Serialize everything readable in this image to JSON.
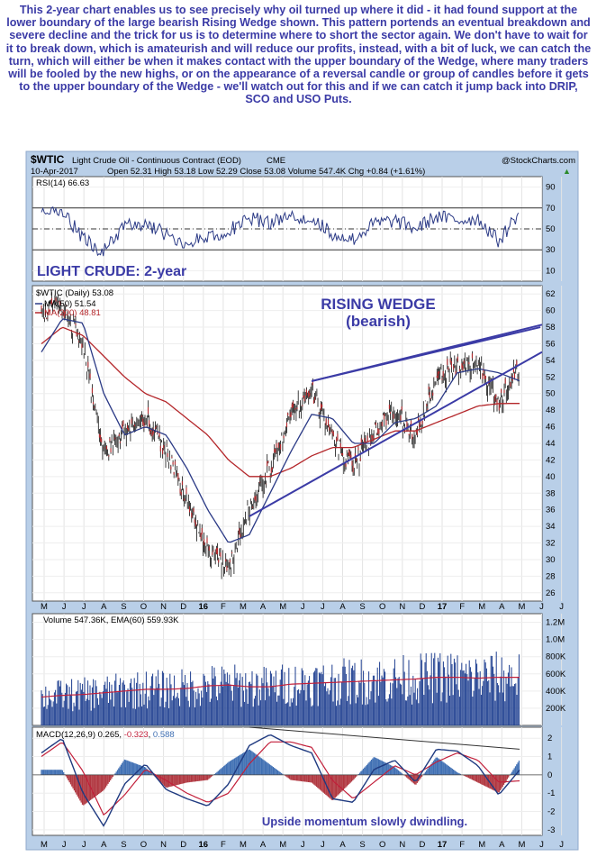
{
  "commentary": "This 2-year chart enables us to see precisely why oil turned up where it did - it had found support at the lower boundary of the large bearish Rising Wedge shown. This pattern portends an eventual breakdown and severe decline and the trick for us is to determine where to short the sector again. We don't have to wait for it to break down, which is amateurish and will reduce our profits, instead, with a bit of luck, we can catch the turn, which will either be when it makes contact with the upper boundary of the Wedge, where many traders will be fooled by the new highs, or on the appearance of a reversal candle or group of candles before it gets to the upper boundary of the Wedge - we'll watch out for this and if we can catch it jump back into DRIP, SCO and USO Puts.",
  "header": {
    "symbol": "$WTIC",
    "name": "Light Crude Oil - Continuous Contract (EOD)",
    "exchange": "CME",
    "credit": "@StockCharts.com",
    "date": "10-Apr-2017",
    "quote": "Open 52.31  High 53.18  Low 52.29  Close 53.08  Volume 547.4K  Chg +0.84 (+1.61%)",
    "quote_arrow": "▲"
  },
  "colors": {
    "frame_bg": "#b9cfe8",
    "panel_bg": "#ffffff",
    "annotation": "#3b3ba6",
    "price": "#111111",
    "ma50": "#2b3a86",
    "ma200": "#b4262a",
    "volume": "#1c3d8f",
    "macd": "#1f3a80",
    "signal": "#c21f3a",
    "hist_pos": "#3f6fb3",
    "hist_neg": "#b0363f",
    "wedge": "#3b3ba6"
  },
  "annotations": {
    "light_crude": "LIGHT CRUDE: 2-year",
    "rising_wedge": "RISING WEDGE",
    "bearish": "(bearish)",
    "momentum": "Upside momentum slowly dwindling."
  },
  "x_axis": {
    "labels": [
      "M",
      "J",
      "J",
      "A",
      "S",
      "O",
      "N",
      "D",
      "16",
      "F",
      "M",
      "A",
      "M",
      "J",
      "J",
      "A",
      "S",
      "O",
      "N",
      "D",
      "17",
      "F",
      "M",
      "A",
      "M",
      "J",
      "J"
    ],
    "bold_labels": [
      "16",
      "17"
    ]
  },
  "rsi_panel": {
    "legend": "RSI(14) 66.63",
    "ticks": [
      90,
      70,
      50,
      30,
      10
    ],
    "bands": [
      70,
      50,
      30
    ],
    "ylim": [
      0,
      100
    ]
  },
  "price_panel": {
    "legend_main": "$WTIC (Daily) 53.08",
    "legend_ma50": "MA(50) 51.54",
    "legend_ma200": "MA(200) 48.81",
    "ticks": [
      62,
      60,
      58,
      56,
      54,
      52,
      50,
      48,
      46,
      44,
      42,
      40,
      38,
      36,
      34,
      32,
      30,
      28,
      26
    ],
    "ylim": [
      25,
      63
    ]
  },
  "volume_panel": {
    "legend": "Volume 547.36K, EMA(60) 559.93K",
    "ticks": [
      "1.2M",
      "1.0M",
      "800K",
      "600K",
      "400K",
      "200K"
    ],
    "tick_values": [
      1200000,
      1000000,
      800000,
      600000,
      400000,
      200000
    ],
    "ylim": [
      0,
      1300000
    ]
  },
  "macd_panel": {
    "legend_prefix": "MACD(12,26,9) 0.265, ",
    "legend_signal": "-0.323",
    "legend_sep": ", ",
    "legend_hist": "0.588",
    "ticks": [
      "2",
      "1",
      "0",
      "-1",
      "-2",
      "-3"
    ],
    "tick_values": [
      2,
      1,
      0,
      -1,
      -2,
      -3
    ],
    "ylim": [
      -3.3,
      2.6
    ]
  },
  "chart_data": {
    "type": "line",
    "title": "Light Crude Oil - Continuous Contract (EOD)",
    "x": [
      "2015-05",
      "2015-06",
      "2015-07",
      "2015-08",
      "2015-09",
      "2015-10",
      "2015-11",
      "2015-12",
      "2016-01",
      "2016-02",
      "2016-03",
      "2016-04",
      "2016-05",
      "2016-06",
      "2016-07",
      "2016-08",
      "2016-09",
      "2016-10",
      "2016-11",
      "2016-12",
      "2017-01",
      "2017-02",
      "2017-03",
      "2017-04"
    ],
    "series": [
      {
        "name": "$WTIC (Daily)",
        "values": [
          59.5,
          60.5,
          56.0,
          42.5,
          45.5,
          47.0,
          43.0,
          37.0,
          31.0,
          28.5,
          36.5,
          41.0,
          47.5,
          50.5,
          44.5,
          41.0,
          45.5,
          48.0,
          45.0,
          52.0,
          53.0,
          53.8,
          49.0,
          53.08
        ]
      },
      {
        "name": "MA(50)",
        "values": [
          55.0,
          59.0,
          58.5,
          50.0,
          45.0,
          46.0,
          45.0,
          41.0,
          36.0,
          32.0,
          33.0,
          38.0,
          43.0,
          47.5,
          47.0,
          44.0,
          44.0,
          46.5,
          47.0,
          48.5,
          52.5,
          53.0,
          52.5,
          51.54
        ]
      },
      {
        "name": "MA(200)",
        "values": [
          56.0,
          58.0,
          57.0,
          54.5,
          52.0,
          50.0,
          49.0,
          47.0,
          45.0,
          42.0,
          40.0,
          40.0,
          41.0,
          42.5,
          43.5,
          43.5,
          44.5,
          45.5,
          45.5,
          46.5,
          47.5,
          48.5,
          48.8,
          48.81
        ]
      }
    ],
    "rsi": [
      70,
      68,
      40,
      28,
      52,
      55,
      45,
      36,
      42,
      48,
      60,
      56,
      62,
      60,
      45,
      40,
      55,
      58,
      50,
      62,
      58,
      60,
      38,
      66.63
    ],
    "macd": [
      1.2,
      2.0,
      -1.0,
      -2.8,
      -0.5,
      0.6,
      -0.8,
      -1.3,
      -1.7,
      -0.5,
      1.6,
      2.2,
      1.6,
      1.2,
      -1.3,
      -1.5,
      0.3,
      0.8,
      -0.4,
      1.4,
      1.3,
      0.5,
      -1.1,
      0.265
    ],
    "signal": [
      1.0,
      1.8,
      0.2,
      -2.2,
      -1.1,
      0.3,
      -0.3,
      -1.0,
      -1.5,
      -1.0,
      0.6,
      1.8,
      1.8,
      1.5,
      -0.3,
      -1.3,
      -0.4,
      0.5,
      0.0,
      0.7,
      1.2,
      0.8,
      -0.4,
      -0.323
    ],
    "volume_ema": [
      330000,
      350000,
      360000,
      380000,
      400000,
      420000,
      420000,
      430000,
      460000,
      470000,
      450000,
      450000,
      480000,
      490000,
      500000,
      510000,
      520000,
      530000,
      540000,
      560000,
      560000,
      550000,
      560000,
      559930
    ],
    "wedge_upper": {
      "from": [
        "2016-06",
        51.5
      ],
      "to": [
        "2017-05",
        58.0
      ]
    },
    "wedge_lower": {
      "from": [
        "2016-03",
        35.2
      ],
      "to": [
        "2017-05",
        51.5
      ]
    },
    "ylabel": "",
    "ylim": [
      25,
      63
    ],
    "grid": true,
    "legend_position": "top-left"
  }
}
